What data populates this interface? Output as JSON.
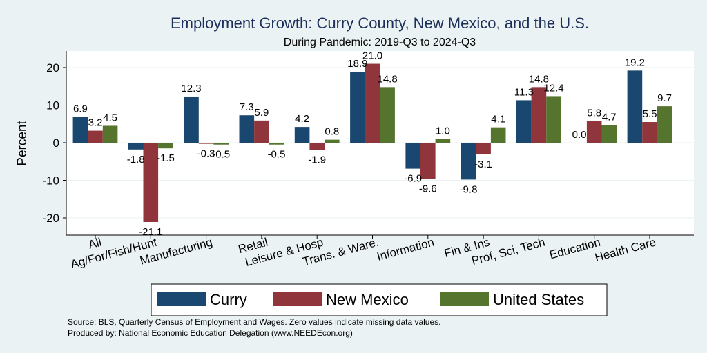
{
  "colors": {
    "curry": "#1a476f",
    "new_mexico": "#90353b",
    "united_states": "#55752f",
    "background": "#eaf2f3",
    "plot_bg": "#ffffff",
    "grid": "#eaf2f3",
    "title": "#1c2f5a"
  },
  "chart_data": {
    "type": "bar",
    "title": "Employment Growth: Curry County, New Mexico, and the U.S.",
    "subtitle": "During Pandemic: 2019-Q3 to 2024-Q3",
    "ylabel": "Percent",
    "xlabel": "",
    "ylim": [
      -24,
      24
    ],
    "yticks": [
      -20,
      -10,
      0,
      10,
      20
    ],
    "grid": true,
    "legend_position": "bottom",
    "categories": [
      "All",
      "Ag/For/Fish/Hunt",
      "Manufacturing",
      "Retail",
      "Leisure & Hosp",
      "Trans. & Ware.",
      "Information",
      "Fin & Ins",
      "Prof, Sci, Tech",
      "Education",
      "Health Care"
    ],
    "series": [
      {
        "name": "Curry",
        "values": [
          6.9,
          -1.8,
          12.3,
          7.3,
          4.2,
          18.9,
          -6.9,
          -9.8,
          11.3,
          0.0,
          19.2
        ]
      },
      {
        "name": "New Mexico",
        "values": [
          3.2,
          -21.1,
          -0.3,
          5.9,
          -1.9,
          21.0,
          -9.6,
          -3.1,
          14.8,
          5.8,
          5.5
        ]
      },
      {
        "name": "United States",
        "values": [
          4.5,
          -1.5,
          -0.5,
          -0.5,
          0.8,
          14.8,
          1.0,
          4.1,
          12.4,
          4.7,
          9.7
        ]
      }
    ],
    "notes": [
      "Source: BLS, Quarterly Census of Employment and Wages. Zero values indicate missing data values.",
      "Produced by: National Economic Education Delegation (www.NEEDEcon.org)"
    ]
  }
}
